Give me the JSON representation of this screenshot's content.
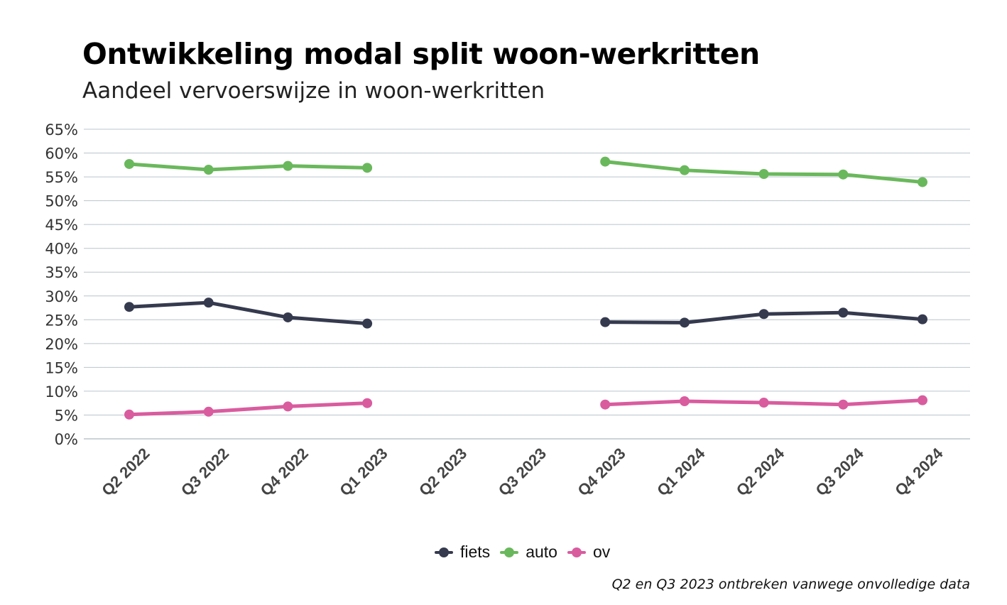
{
  "chart_data": {
    "type": "line",
    "title": "Ontwikkeling modal split woon-werkritten",
    "subtitle": "Aandeel vervoerswijze in woon-werkritten",
    "xlabel": "",
    "ylabel": "",
    "ylim": [
      0,
      65
    ],
    "y_ticks": [
      "0%",
      "5%",
      "10%",
      "15%",
      "20%",
      "25%",
      "30%",
      "35%",
      "40%",
      "45%",
      "50%",
      "55%",
      "60%",
      "65%"
    ],
    "categories": [
      "Q2 2022",
      "Q3 2022",
      "Q4 2022",
      "Q1 2023",
      "Q2 2023",
      "Q3 2023",
      "Q4 2023",
      "Q1 2024",
      "Q2 2024",
      "Q3 2024",
      "Q4 2024"
    ],
    "series": [
      {
        "name": "fiets",
        "color": "#353a4e",
        "values": [
          27.7,
          28.6,
          25.5,
          24.2,
          null,
          null,
          24.5,
          24.4,
          26.2,
          26.5,
          25.1
        ]
      },
      {
        "name": "auto",
        "color": "#6ab85c",
        "values": [
          57.7,
          56.5,
          57.3,
          56.9,
          null,
          null,
          58.2,
          56.4,
          55.6,
          55.5,
          53.9
        ]
      },
      {
        "name": "ov",
        "color": "#d95c9f",
        "values": [
          5.1,
          5.7,
          6.8,
          7.5,
          null,
          null,
          7.2,
          7.9,
          7.6,
          7.2,
          8.1
        ]
      }
    ],
    "grid": true,
    "legend_position": "bottom-center",
    "footnote": "Q2 en Q3 2023 ontbreken vanwege onvolledige data"
  }
}
